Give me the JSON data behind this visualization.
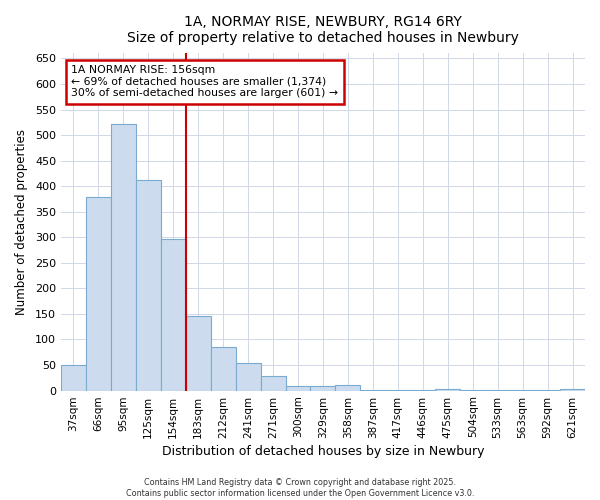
{
  "title1": "1A, NORMAY RISE, NEWBURY, RG14 6RY",
  "title2": "Size of property relative to detached houses in Newbury",
  "xlabel": "Distribution of detached houses by size in Newbury",
  "ylabel": "Number of detached properties",
  "categories": [
    "37sqm",
    "66sqm",
    "95sqm",
    "125sqm",
    "154sqm",
    "183sqm",
    "212sqm",
    "241sqm",
    "271sqm",
    "300sqm",
    "329sqm",
    "358sqm",
    "387sqm",
    "417sqm",
    "446sqm",
    "475sqm",
    "504sqm",
    "533sqm",
    "563sqm",
    "592sqm",
    "621sqm"
  ],
  "values": [
    50,
    378,
    522,
    413,
    297,
    145,
    85,
    54,
    29,
    9,
    9,
    11,
    2,
    2,
    2,
    4,
    1,
    1,
    1,
    1,
    4
  ],
  "bar_color": "#ccdcee",
  "bar_edge_color": "#7aaad0",
  "vline_color": "#cc0000",
  "vline_x_index": 4.5,
  "annotation_title": "1A NORMAY RISE: 156sqm",
  "annotation_line1": "← 69% of detached houses are smaller (1,374)",
  "annotation_line2": "30% of semi-detached houses are larger (601) →",
  "annotation_box_color": "#cc0000",
  "ylim": [
    0,
    660
  ],
  "yticks": [
    0,
    50,
    100,
    150,
    200,
    250,
    300,
    350,
    400,
    450,
    500,
    550,
    600,
    650
  ],
  "footer1": "Contains HM Land Registry data © Crown copyright and database right 2025.",
  "footer2": "Contains public sector information licensed under the Open Government Licence v3.0.",
  "bg_color": "#ffffff",
  "plot_bg_color": "#ffffff",
  "grid_color": "#d0d8e8"
}
